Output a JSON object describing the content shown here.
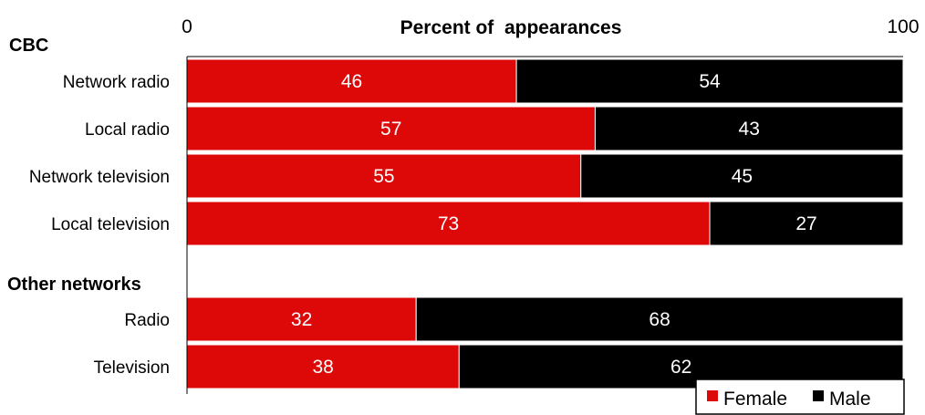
{
  "chart_data": {
    "type": "bar",
    "orientation": "horizontal",
    "stacked": true,
    "xlabel": "Percent of  appearances",
    "xlim": [
      0,
      100
    ],
    "x_ticks": [
      "0",
      "100"
    ],
    "groups": [
      {
        "label": "CBC",
        "categories": [
          "Network radio",
          "Local radio",
          "Network television",
          "Local television"
        ]
      },
      {
        "label": "Other networks",
        "categories": [
          "Radio",
          "Television"
        ]
      }
    ],
    "categories": [
      "Network radio",
      "Local radio",
      "Network television",
      "Local television",
      "Radio",
      "Television"
    ],
    "series": [
      {
        "name": "Female",
        "color": "#dd0808",
        "values": [
          46,
          57,
          55,
          73,
          32,
          38
        ]
      },
      {
        "name": "Male",
        "color": "#000000",
        "values": [
          54,
          43,
          45,
          27,
          68,
          62
        ]
      }
    ],
    "legend_position": "bottom-right",
    "grid": false
  }
}
